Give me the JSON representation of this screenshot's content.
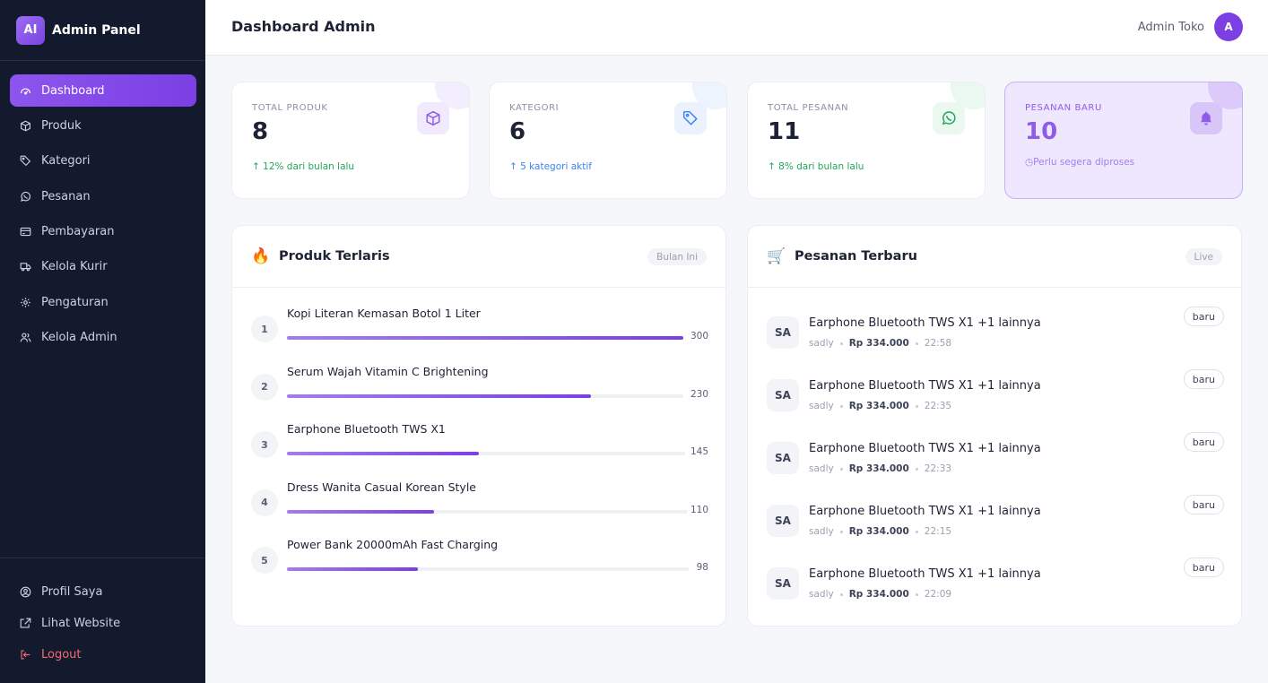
{
  "brand": {
    "logo_text": "AI",
    "name": "Admin Panel"
  },
  "sidebar": {
    "items": [
      {
        "label": "Dashboard",
        "icon": "gauge-icon",
        "active": true
      },
      {
        "label": "Produk",
        "icon": "box-icon"
      },
      {
        "label": "Kategori",
        "icon": "tag-icon"
      },
      {
        "label": "Pesanan",
        "icon": "whatsapp-icon"
      },
      {
        "label": "Pembayaran",
        "icon": "credit-card-icon"
      },
      {
        "label": "Kelola Kurir",
        "icon": "truck-icon"
      },
      {
        "label": "Pengaturan",
        "icon": "gear-icon"
      },
      {
        "label": "Kelola Admin",
        "icon": "users-icon"
      }
    ],
    "bottom": [
      {
        "label": "Profil Saya",
        "icon": "user-circle-icon"
      },
      {
        "label": "Lihat Website",
        "icon": "external-link-icon"
      },
      {
        "label": "Logout",
        "icon": "logout-icon"
      }
    ]
  },
  "header": {
    "title": "Dashboard Admin",
    "user_name": "Admin Toko",
    "user_initial": "A"
  },
  "stats": [
    {
      "label": "TOTAL PRODUK",
      "value": "8",
      "sub": "↑ 12% dari bulan lalu",
      "icon": "box-icon",
      "color": "#22a55a"
    },
    {
      "label": "KATEGORI",
      "value": "6",
      "sub": "↑ 5 kategori aktif",
      "icon": "tag-icon",
      "color": "#3b82f6"
    },
    {
      "label": "TOTAL PESANAN",
      "value": "11",
      "sub": "↑ 8% dari bulan lalu",
      "icon": "whatsapp-icon",
      "color": "#22a55a"
    },
    {
      "label": "PESANAN BARU",
      "value": "10",
      "sub": "Perlu segera diproses",
      "icon": "bell-icon",
      "color": "#a27ded"
    }
  ],
  "top_products": {
    "title": "Produk Terlaris",
    "badge": "Bulan Ini",
    "items": [
      {
        "rank": "1",
        "name": "Kopi Literan Kemasan Botol 1 Liter",
        "value": "300",
        "ratio": 1.0
      },
      {
        "rank": "2",
        "name": "Serum Wajah Vitamin C Brightening",
        "value": "230",
        "ratio": 0.767
      },
      {
        "rank": "3",
        "name": "Earphone Bluetooth TWS X1",
        "value": "145",
        "ratio": 0.483
      },
      {
        "rank": "4",
        "name": "Dress Wanita Casual Korean Style",
        "value": "110",
        "ratio": 0.367
      },
      {
        "rank": "5",
        "name": "Power Bank 20000mAh Fast Charging",
        "value": "98",
        "ratio": 0.327
      }
    ]
  },
  "recent_orders": {
    "title": "Pesanan Terbaru",
    "badge": "Live",
    "items": [
      {
        "initials": "SA",
        "title": "Earphone Bluetooth TWS X1 +1 lainnya",
        "customer": "sadly",
        "price": "Rp 334.000",
        "time": "22:58",
        "status": "baru"
      },
      {
        "initials": "SA",
        "title": "Earphone Bluetooth TWS X1 +1 lainnya",
        "customer": "sadly",
        "price": "Rp 334.000",
        "time": "22:35",
        "status": "baru"
      },
      {
        "initials": "SA",
        "title": "Earphone Bluetooth TWS X1 +1 lainnya",
        "customer": "sadly",
        "price": "Rp 334.000",
        "time": "22:33",
        "status": "baru"
      },
      {
        "initials": "SA",
        "title": "Earphone Bluetooth TWS X1 +1 lainnya",
        "customer": "sadly",
        "price": "Rp 334.000",
        "time": "22:15",
        "status": "baru"
      },
      {
        "initials": "SA",
        "title": "Earphone Bluetooth TWS X1 +1 lainnya",
        "customer": "sadly",
        "price": "Rp 334.000",
        "time": "22:09",
        "status": "baru"
      }
    ]
  }
}
